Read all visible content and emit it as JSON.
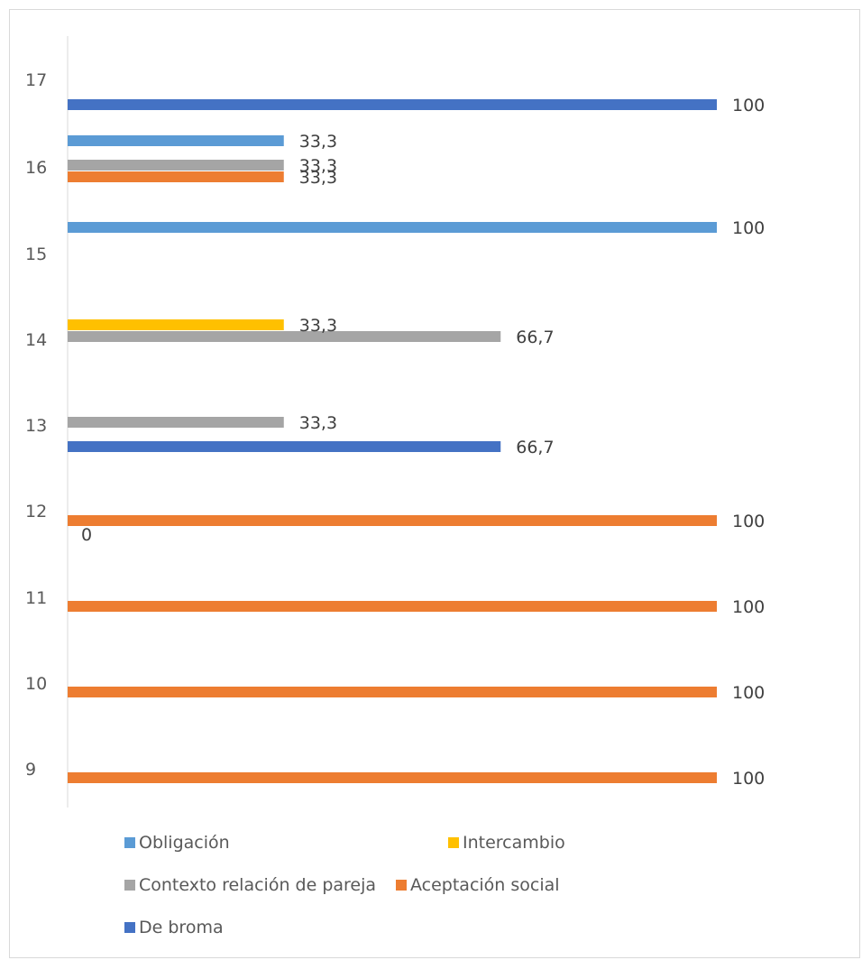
{
  "chart_data": {
    "type": "bar",
    "orientation": "horizontal",
    "categories": [
      "9",
      "10",
      "11",
      "12",
      "13",
      "14",
      "15",
      "16",
      "17"
    ],
    "xlim": [
      0,
      100
    ],
    "grid": false,
    "legend_position": "bottom",
    "series": [
      {
        "name": "Obligación",
        "color": "#5B9BD5",
        "values": [
          null,
          null,
          null,
          null,
          null,
          null,
          100,
          33.3,
          null
        ],
        "labels": [
          "",
          "",
          "",
          "",
          "",
          "",
          "100",
          "33,3",
          ""
        ]
      },
      {
        "name": "Intercambio",
        "color": "#FFC000",
        "values": [
          null,
          null,
          null,
          null,
          null,
          33.3,
          null,
          null,
          null
        ],
        "labels": [
          "",
          "",
          "",
          "",
          "",
          "33,3",
          "",
          "",
          ""
        ]
      },
      {
        "name": "Contexto relación de pareja",
        "color": "#A5A5A5",
        "values": [
          null,
          null,
          null,
          null,
          33.3,
          66.7,
          null,
          33.3,
          null
        ],
        "labels": [
          "",
          "",
          "",
          "",
          "33,3",
          "66,7",
          "",
          "33,3",
          ""
        ]
      },
      {
        "name": "Aceptación social",
        "color": "#ED7D31",
        "values": [
          100,
          100,
          100,
          100,
          null,
          null,
          null,
          33.3,
          null
        ],
        "labels": [
          "100",
          "100",
          "100",
          "100",
          "",
          "",
          "",
          "33,3",
          ""
        ]
      },
      {
        "name": "De broma",
        "color": "#4472C4",
        "values": [
          null,
          null,
          null,
          0,
          66.7,
          null,
          null,
          null,
          100
        ],
        "labels": [
          "",
          "",
          "",
          "0",
          "66,7",
          "",
          "",
          "",
          "100"
        ]
      }
    ]
  }
}
